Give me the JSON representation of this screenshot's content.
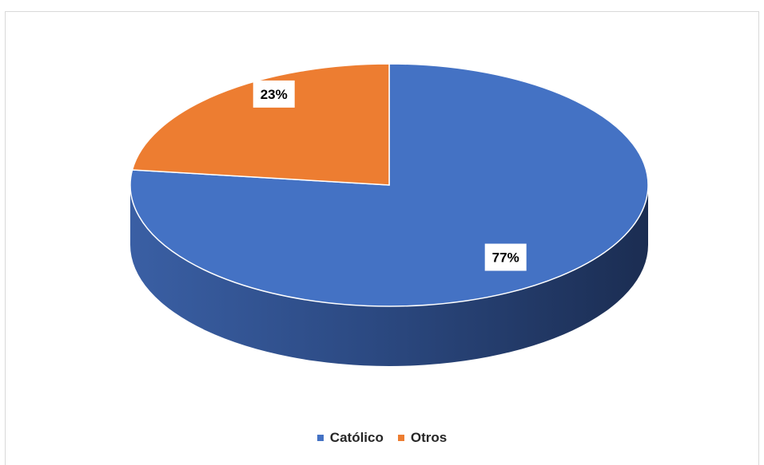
{
  "chart_data": {
    "type": "pie",
    "style": "3d",
    "title": "",
    "categories": [
      "Católico",
      "Otros"
    ],
    "values": [
      77,
      23
    ],
    "labels": [
      "77%",
      "23%"
    ],
    "colors": [
      "#4472C4",
      "#ED7D31"
    ],
    "legend_position": "bottom"
  }
}
